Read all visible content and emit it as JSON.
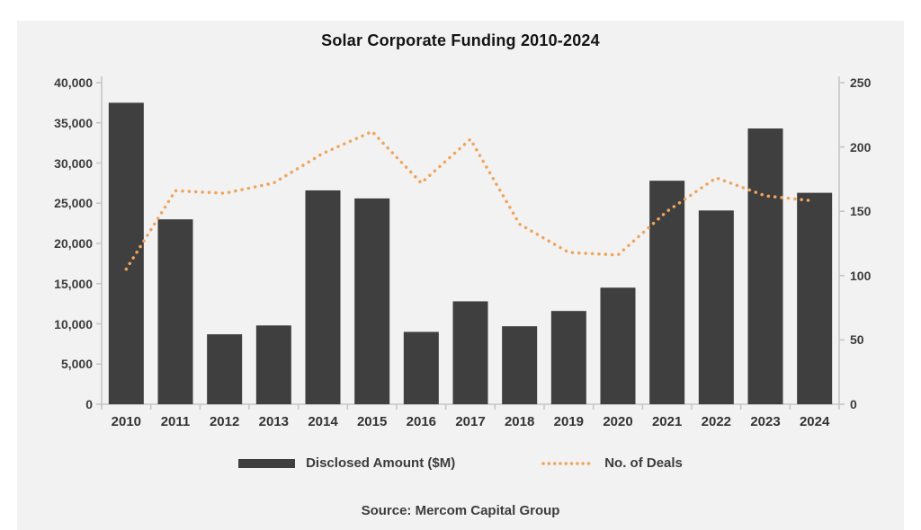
{
  "title": "Solar Corporate Funding 2010-2024",
  "source": "Source: Mercom Capital Group",
  "legend": {
    "bar_label": "Disclosed Amount ($M)",
    "line_label": "No. of Deals"
  },
  "colors": {
    "bar": "#3F3F3F",
    "line": "#EFA55E",
    "panel_bg": "#F2F2F2",
    "axis": "#C6C6C6",
    "tick_text": "#3C3C3C"
  },
  "chart_data": {
    "type": "bar",
    "subtype": "combo-bar-and-dotted-line",
    "title": "Solar Corporate Funding 2010-2024",
    "categories": [
      "2010",
      "2011",
      "2012",
      "2013",
      "2014",
      "2015",
      "2016",
      "2017",
      "2018",
      "2019",
      "2020",
      "2021",
      "2022",
      "2023",
      "2024"
    ],
    "series": [
      {
        "name": "Disclosed Amount ($M)",
        "type": "bar",
        "axis": "left",
        "values": [
          37500,
          23000,
          8700,
          9800,
          26600,
          25600,
          9000,
          12800,
          9700,
          11600,
          14500,
          27800,
          24100,
          34300,
          26300
        ]
      },
      {
        "name": "No. of Deals",
        "type": "line",
        "style": "dotted",
        "axis": "right",
        "values": [
          105,
          166,
          164,
          172,
          195,
          212,
          172,
          206,
          140,
          118,
          116,
          150,
          176,
          162,
          158
        ]
      }
    ],
    "left_axis": {
      "min": 0,
      "max": 40000,
      "step": 5000,
      "tick_labels": [
        "0",
        "5,000",
        "10,000",
        "15,000",
        "20,000",
        "25,000",
        "30,000",
        "35,000",
        "40,000"
      ]
    },
    "right_axis": {
      "min": 0,
      "max": 250,
      "step": 50,
      "tick_labels": [
        "0",
        "50",
        "100",
        "150",
        "200",
        "250"
      ]
    },
    "grid": false,
    "legend_position": "bottom",
    "xlabel": "",
    "ylabel_left": "",
    "ylabel_right": ""
  }
}
